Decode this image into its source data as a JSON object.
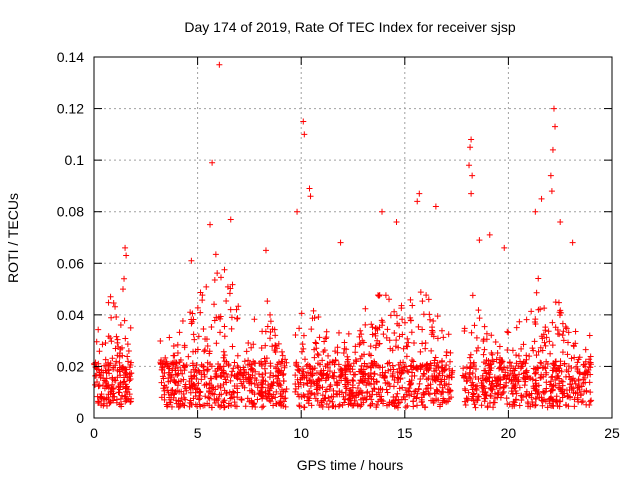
{
  "chart_data": {
    "type": "scatter",
    "title": "Day 174 of 2019, Rate Of TEC Index for receiver sjsp",
    "xlabel": "GPS time / hours",
    "ylabel": "ROTI / TECUs",
    "xlim": [
      0,
      25
    ],
    "ylim": [
      0,
      0.14
    ],
    "grid": true,
    "marker": "+",
    "x_ticks": [
      0,
      5,
      10,
      15,
      20,
      25
    ],
    "y_ticks": [
      0,
      0.02,
      0.04,
      0.06,
      0.08,
      0.1,
      0.12,
      0.14
    ],
    "x_tick_labels": [
      "0",
      "5",
      "10",
      "15",
      "20",
      "25"
    ],
    "y_tick_labels": [
      "0",
      "0.02",
      "0.04",
      "0.06",
      "0.08",
      "0.1",
      "0.12",
      "0.14"
    ],
    "series": [
      {
        "name": "ROTI",
        "color": "#ff0000",
        "data_gaps_hours": [
          [
            1.8,
            3.2
          ],
          [
            9.3,
            9.7
          ],
          [
            17.3,
            17.8
          ]
        ],
        "notable_points": [
          {
            "x": 6.05,
            "y": 0.137
          },
          {
            "x": 5.7,
            "y": 0.099
          },
          {
            "x": 10.1,
            "y": 0.115
          },
          {
            "x": 10.15,
            "y": 0.11
          },
          {
            "x": 22.2,
            "y": 0.12
          },
          {
            "x": 22.25,
            "y": 0.113
          },
          {
            "x": 22.15,
            "y": 0.104
          },
          {
            "x": 18.2,
            "y": 0.108
          },
          {
            "x": 18.15,
            "y": 0.105
          },
          {
            "x": 18.1,
            "y": 0.098
          },
          {
            "x": 18.25,
            "y": 0.094
          },
          {
            "x": 18.2,
            "y": 0.087
          },
          {
            "x": 10.4,
            "y": 0.089
          },
          {
            "x": 10.45,
            "y": 0.086
          },
          {
            "x": 22.05,
            "y": 0.094
          },
          {
            "x": 22.1,
            "y": 0.088
          },
          {
            "x": 1.5,
            "y": 0.066
          },
          {
            "x": 1.55,
            "y": 0.063
          },
          {
            "x": 1.45,
            "y": 0.054
          },
          {
            "x": 1.4,
            "y": 0.05
          },
          {
            "x": 0.8,
            "y": 0.047
          },
          {
            "x": 6.6,
            "y": 0.077
          },
          {
            "x": 5.6,
            "y": 0.075
          },
          {
            "x": 11.9,
            "y": 0.068
          },
          {
            "x": 13.9,
            "y": 0.08
          },
          {
            "x": 15.7,
            "y": 0.087
          },
          {
            "x": 15.6,
            "y": 0.084
          },
          {
            "x": 9.8,
            "y": 0.08
          },
          {
            "x": 16.5,
            "y": 0.082
          },
          {
            "x": 18.6,
            "y": 0.069
          },
          {
            "x": 19.1,
            "y": 0.071
          },
          {
            "x": 21.3,
            "y": 0.08
          },
          {
            "x": 21.6,
            "y": 0.085
          },
          {
            "x": 22.5,
            "y": 0.076
          },
          {
            "x": 23.1,
            "y": 0.068
          },
          {
            "x": 14.6,
            "y": 0.076
          },
          {
            "x": 19.8,
            "y": 0.066
          },
          {
            "x": 4.7,
            "y": 0.061
          },
          {
            "x": 8.3,
            "y": 0.065
          }
        ]
      }
    ]
  }
}
